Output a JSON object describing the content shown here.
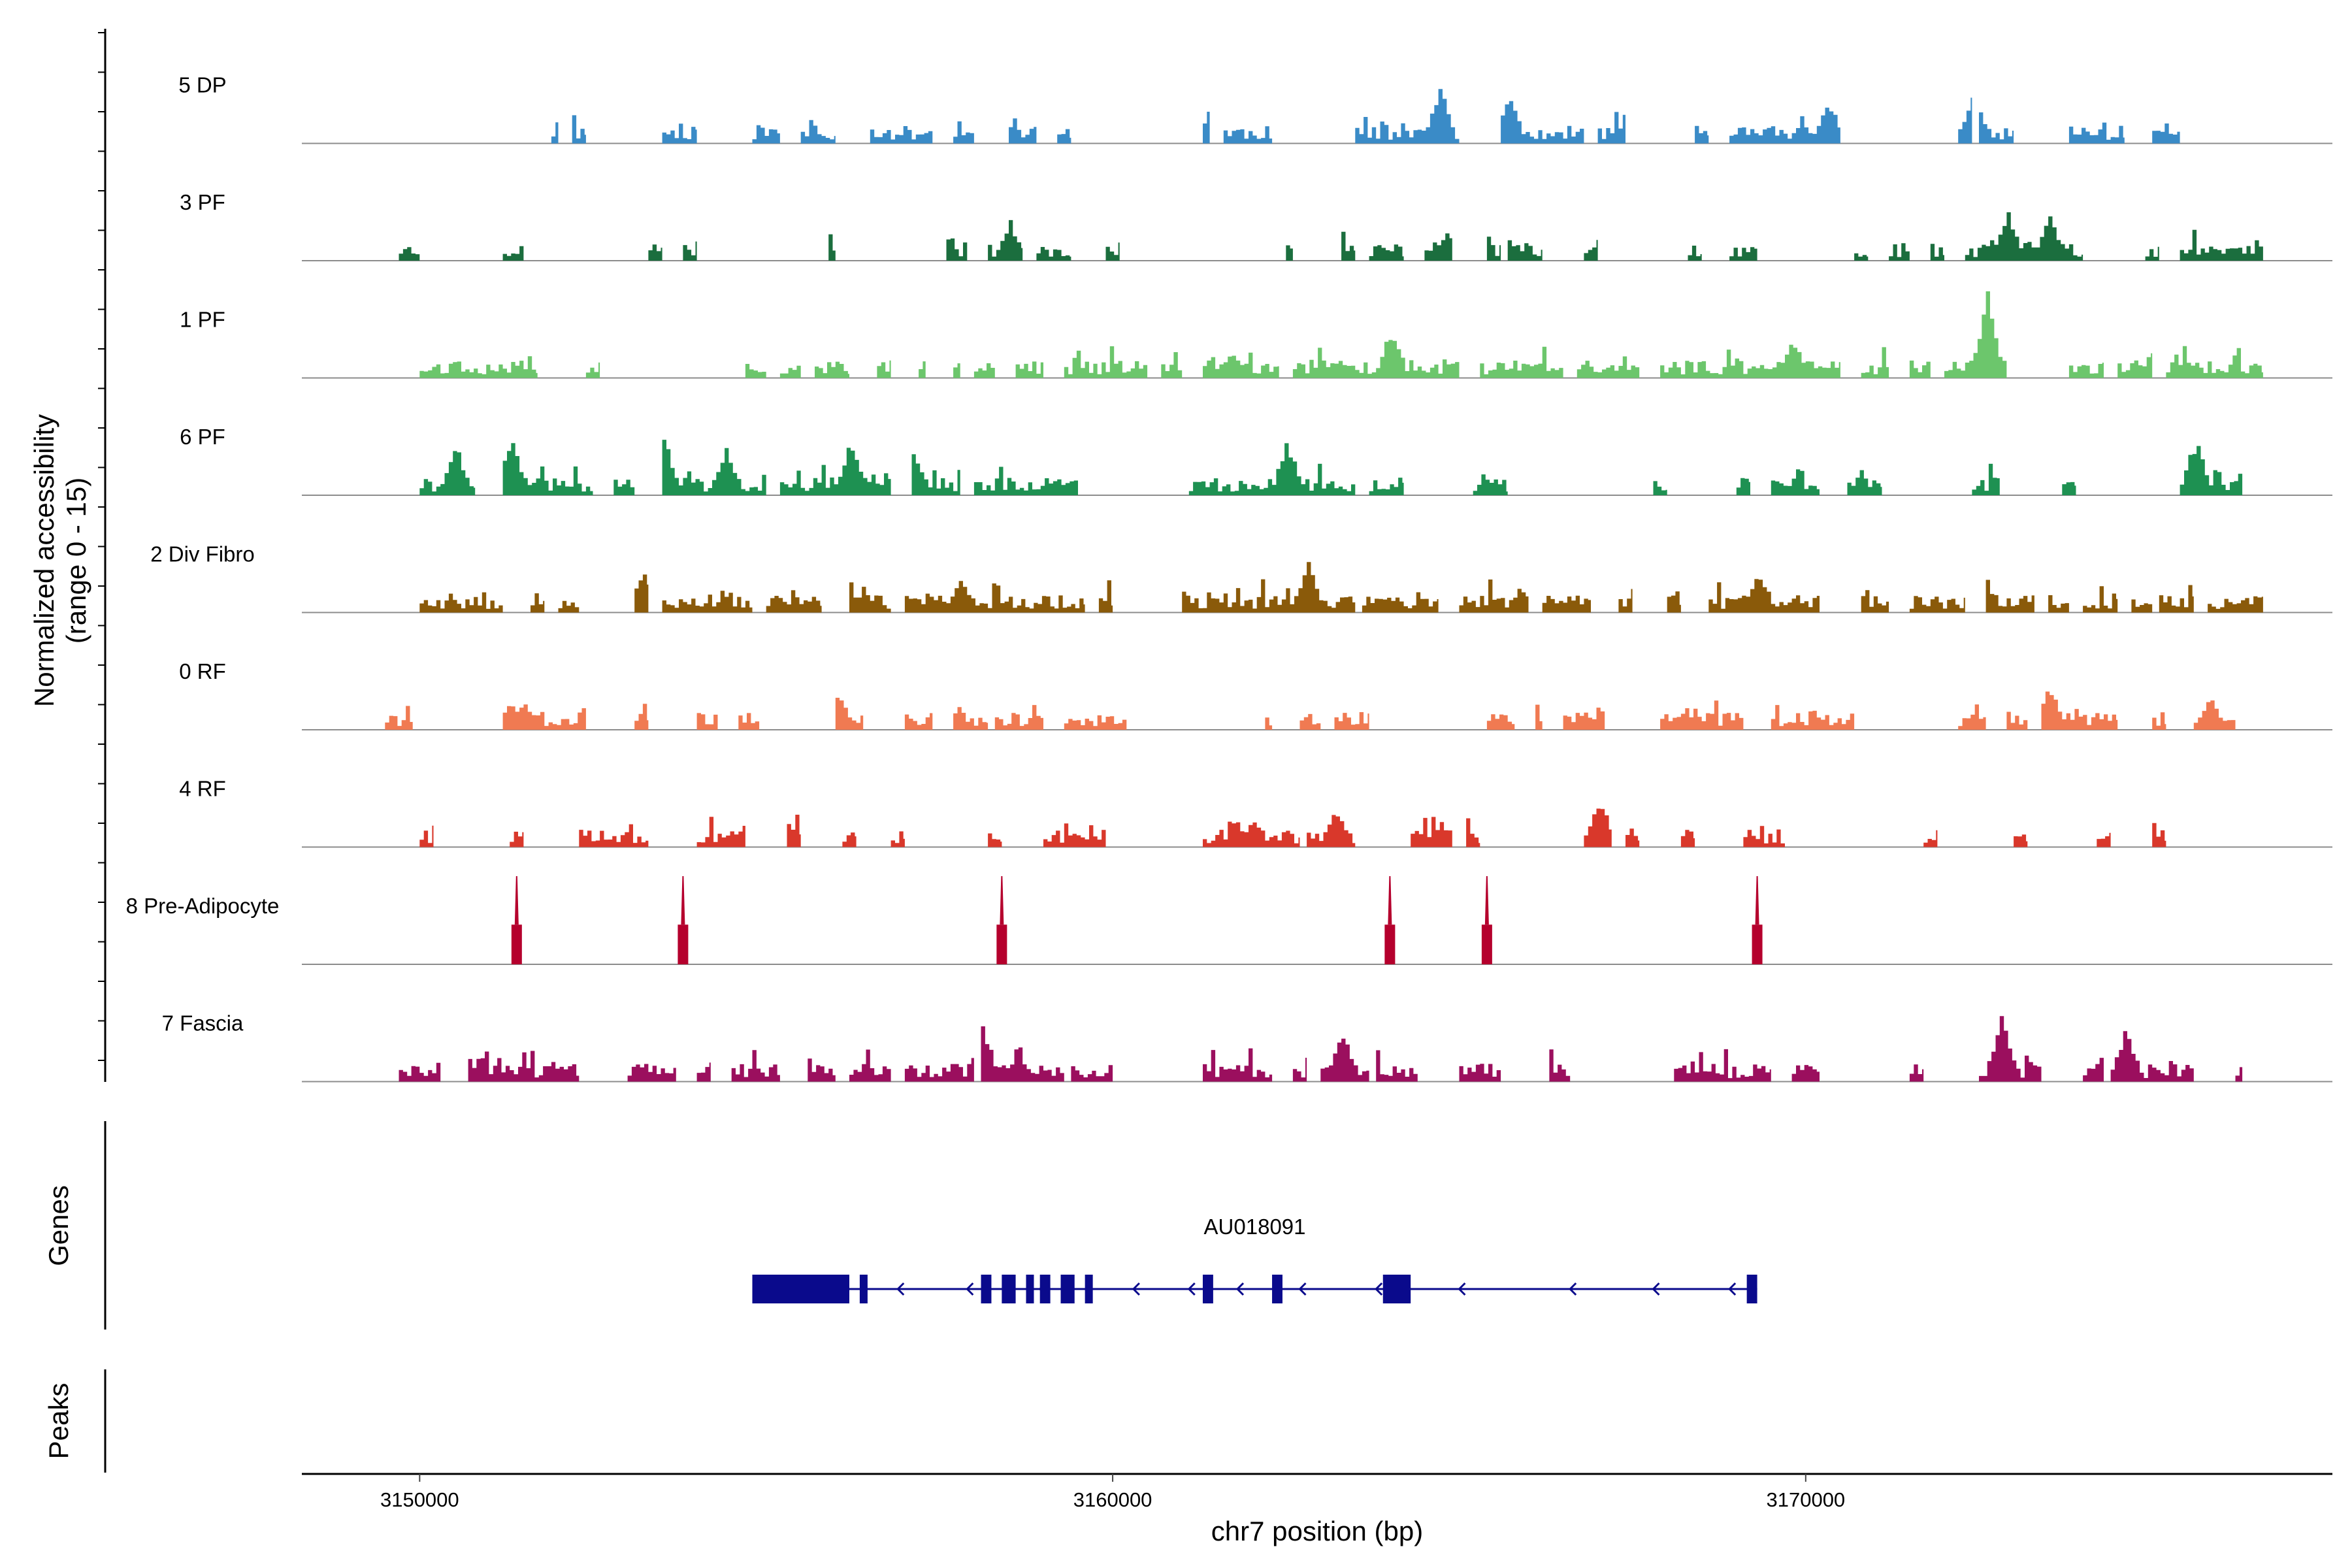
{
  "chart_data": {
    "type": "genome-coverage",
    "y_axis_title": "Normalized accessibility",
    "y_axis_subtitle": "(range 0 - 15)",
    "y_range": [
      0,
      15
    ],
    "x_axis_title": "chr7 position (bp)",
    "x_range": [
      3148300,
      3177600
    ],
    "x_ticks": [
      {
        "value": 3150000,
        "label": "3150000"
      },
      {
        "value": 3160000,
        "label": "3160000"
      },
      {
        "value": 3170000,
        "label": "3170000"
      }
    ],
    "tracks": [
      {
        "name": "5 DP",
        "color": "#3a8bc7",
        "seed": 11,
        "regions": [
          [
            3151900,
            3152000
          ],
          [
            3152200,
            3152400
          ],
          [
            3153500,
            3154000
          ],
          [
            3154800,
            3155200
          ],
          [
            3155500,
            3156000
          ],
          [
            3156500,
            3157400
          ],
          [
            3157700,
            3158000
          ],
          [
            3158500,
            3158900
          ],
          [
            3159200,
            3159400
          ],
          [
            3161300,
            3161400
          ],
          [
            3161600,
            3162300
          ],
          [
            3163500,
            3165000
          ],
          [
            3165600,
            3166800
          ],
          [
            3167000,
            3167400
          ],
          [
            3168400,
            3168600
          ],
          [
            3168900,
            3170500
          ],
          [
            3172200,
            3172400
          ],
          [
            3172500,
            3173000
          ],
          [
            3173800,
            3174600
          ],
          [
            3175000,
            3175400
          ]
        ],
        "peaks": [
          [
            3161420,
            8
          ],
          [
            3164700,
            10
          ],
          [
            3165700,
            9
          ],
          [
            3170300,
            8
          ],
          [
            3172400,
            9
          ]
        ]
      },
      {
        "name": "3 PF",
        "color": "#1b6e3e",
        "seed": 23,
        "regions": [
          [
            3149700,
            3150000
          ],
          [
            3151200,
            3151500
          ],
          [
            3153300,
            3153500
          ],
          [
            3153800,
            3154000
          ],
          [
            3155900,
            3156000
          ],
          [
            3157600,
            3157900
          ],
          [
            3158200,
            3158700
          ],
          [
            3158900,
            3159400
          ],
          [
            3159900,
            3160100
          ],
          [
            3162500,
            3162600
          ],
          [
            3163300,
            3163500
          ],
          [
            3163700,
            3164200
          ],
          [
            3164500,
            3164900
          ],
          [
            3165400,
            3165600
          ],
          [
            3165700,
            3166200
          ],
          [
            3166800,
            3167000
          ],
          [
            3168300,
            3168500
          ],
          [
            3168900,
            3169300
          ],
          [
            3170700,
            3170900
          ],
          [
            3171200,
            3171500
          ],
          [
            3171800,
            3172000
          ],
          [
            3172300,
            3174000
          ],
          [
            3174900,
            3175100
          ],
          [
            3175400,
            3176600
          ]
        ],
        "peaks": [
          [
            3158500,
            7
          ],
          [
            3164800,
            6
          ],
          [
            3172900,
            9
          ],
          [
            3173500,
            8
          ]
        ]
      },
      {
        "name": "1 PF",
        "color": "#6cc66c",
        "seed": 37,
        "regions": [
          [
            3150000,
            3151700
          ],
          [
            3152400,
            3152600
          ],
          [
            3154700,
            3155000
          ],
          [
            3155200,
            3155500
          ],
          [
            3155700,
            3156200
          ],
          [
            3156600,
            3156800
          ],
          [
            3157200,
            3157300
          ],
          [
            3157700,
            3157800
          ],
          [
            3158000,
            3158300
          ],
          [
            3158600,
            3159000
          ],
          [
            3159300,
            3160500
          ],
          [
            3160700,
            3161000
          ],
          [
            3161300,
            3162400
          ],
          [
            3162600,
            3165000
          ],
          [
            3165300,
            3166500
          ],
          [
            3166700,
            3167600
          ],
          [
            3167900,
            3170500
          ],
          [
            3170800,
            3171200
          ],
          [
            3171500,
            3171800
          ],
          [
            3172000,
            3172900
          ],
          [
            3173800,
            3174300
          ],
          [
            3174500,
            3175000
          ],
          [
            3175200,
            3176600
          ]
        ],
        "peaks": [
          [
            3161700,
            5
          ],
          [
            3164000,
            9
          ],
          [
            3169800,
            7
          ],
          [
            3172600,
            15
          ]
        ]
      },
      {
        "name": "6 PF",
        "color": "#1e9152",
        "seed": 41,
        "regions": [
          [
            3150000,
            3150800
          ],
          [
            3151200,
            3152500
          ],
          [
            3152800,
            3153100
          ],
          [
            3153500,
            3155000
          ],
          [
            3155200,
            3156800
          ],
          [
            3157100,
            3157800
          ],
          [
            3158000,
            3159500
          ],
          [
            3161100,
            3163500
          ],
          [
            3163700,
            3164200
          ],
          [
            3165200,
            3165700
          ],
          [
            3167800,
            3168000
          ],
          [
            3169000,
            3169200
          ],
          [
            3169500,
            3170200
          ],
          [
            3170600,
            3171100
          ],
          [
            3172400,
            3172800
          ],
          [
            3173700,
            3173900
          ],
          [
            3175400,
            3176300
          ]
        ],
        "peaks": [
          [
            3150500,
            9
          ],
          [
            3151300,
            10
          ],
          [
            3153500,
            11
          ],
          [
            3154400,
            9
          ],
          [
            3156200,
            10
          ],
          [
            3157100,
            9
          ],
          [
            3162500,
            10
          ],
          [
            3164900,
            9
          ],
          [
            3175600,
            10
          ]
        ]
      },
      {
        "name": "2 Div Fibro",
        "color": "#8a5a0a",
        "seed": 53,
        "regions": [
          [
            3150000,
            3151200
          ],
          [
            3151600,
            3151800
          ],
          [
            3152000,
            3152300
          ],
          [
            3153100,
            3153300
          ],
          [
            3153500,
            3154800
          ],
          [
            3155000,
            3155800
          ],
          [
            3156200,
            3156800
          ],
          [
            3157000,
            3159600
          ],
          [
            3159800,
            3160000
          ],
          [
            3161000,
            3163500
          ],
          [
            3163600,
            3164700
          ],
          [
            3165000,
            3166000
          ],
          [
            3166200,
            3166900
          ],
          [
            3167300,
            3167500
          ],
          [
            3168000,
            3168200
          ],
          [
            3168600,
            3170200
          ],
          [
            3170800,
            3171200
          ],
          [
            3171500,
            3172300
          ],
          [
            3172600,
            3173300
          ],
          [
            3173500,
            3173800
          ],
          [
            3174000,
            3174500
          ],
          [
            3174700,
            3175000
          ],
          [
            3175100,
            3175600
          ],
          [
            3175800,
            3176600
          ]
        ],
        "peaks": [
          [
            3153200,
            7
          ],
          [
            3157800,
            6
          ],
          [
            3162800,
            9
          ],
          [
            3169300,
            8
          ],
          [
            3172500,
            10
          ]
        ]
      },
      {
        "name": "0 RF",
        "color": "#f07a52",
        "seed": 67,
        "regions": [
          [
            3149500,
            3149900
          ],
          [
            3151200,
            3152400
          ],
          [
            3153100,
            3153300
          ],
          [
            3154000,
            3154300
          ],
          [
            3154600,
            3154900
          ],
          [
            3156000,
            3156400
          ],
          [
            3157000,
            3157400
          ],
          [
            3157700,
            3158200
          ],
          [
            3158300,
            3159000
          ],
          [
            3159300,
            3160200
          ],
          [
            3162200,
            3162300
          ],
          [
            3162700,
            3163000
          ],
          [
            3163200,
            3163700
          ],
          [
            3165400,
            3165800
          ],
          [
            3166100,
            3166200
          ],
          [
            3166500,
            3167100
          ],
          [
            3167900,
            3169100
          ],
          [
            3169500,
            3170700
          ],
          [
            3172200,
            3172600
          ],
          [
            3172900,
            3173200
          ],
          [
            3173400,
            3174500
          ],
          [
            3175000,
            3175200
          ],
          [
            3175600,
            3176200
          ]
        ],
        "peaks": [
          [
            3151500,
            5
          ],
          [
            3156000,
            7
          ],
          [
            3157600,
            6
          ],
          [
            3169300,
            4
          ],
          [
            3173500,
            8
          ],
          [
            3175800,
            6
          ]
        ]
      },
      {
        "name": "4 RF",
        "color": "#d9382b",
        "seed": 79,
        "regions": [
          [
            3150000,
            3150200
          ],
          [
            3151300,
            3151500
          ],
          [
            3152300,
            3153300
          ],
          [
            3154000,
            3154700
          ],
          [
            3155300,
            3155500
          ],
          [
            3156100,
            3156300
          ],
          [
            3156800,
            3157000
          ],
          [
            3158200,
            3158400
          ],
          [
            3159000,
            3159900
          ],
          [
            3161300,
            3162700
          ],
          [
            3162800,
            3163500
          ],
          [
            3164300,
            3164900
          ],
          [
            3165100,
            3165300
          ],
          [
            3166800,
            3167200
          ],
          [
            3167400,
            3167600
          ],
          [
            3168200,
            3168400
          ],
          [
            3169100,
            3169700
          ],
          [
            3171700,
            3171900
          ],
          [
            3173000,
            3173200
          ],
          [
            3174200,
            3174400
          ],
          [
            3175000,
            3175200
          ]
        ],
        "peaks": [
          [
            3162000,
            5
          ],
          [
            3163200,
            7
          ],
          [
            3167000,
            9
          ]
        ]
      },
      {
        "name": "8 Pre-Adipocyte",
        "color": "#b5002d",
        "mode": "spikes",
        "spikes": [
          [
            3151400,
            15
          ],
          [
            3153800,
            15
          ],
          [
            3158400,
            15
          ],
          [
            3164000,
            15
          ],
          [
            3165400,
            15
          ],
          [
            3169300,
            15
          ]
        ]
      },
      {
        "name": "7 Fascia",
        "color": "#9b0f5e",
        "seed": 97,
        "regions": [
          [
            3149700,
            3150300
          ],
          [
            3150700,
            3152300
          ],
          [
            3153000,
            3153700
          ],
          [
            3154000,
            3154200
          ],
          [
            3154500,
            3155200
          ],
          [
            3155600,
            3156000
          ],
          [
            3156200,
            3156800
          ],
          [
            3157000,
            3158000
          ],
          [
            3158100,
            3159300
          ],
          [
            3159400,
            3160000
          ],
          [
            3161300,
            3162300
          ],
          [
            3162600,
            3162800
          ],
          [
            3163000,
            3163700
          ],
          [
            3163800,
            3164400
          ],
          [
            3165000,
            3165600
          ],
          [
            3166300,
            3166600
          ],
          [
            3168100,
            3169500
          ],
          [
            3169800,
            3170200
          ],
          [
            3171500,
            3171700
          ],
          [
            3172500,
            3173400
          ],
          [
            3174000,
            3174300
          ],
          [
            3174400,
            3175600
          ],
          [
            3176200,
            3176300
          ]
        ],
        "peaks": [
          [
            3150600,
            8
          ],
          [
            3158100,
            11
          ],
          [
            3163300,
            9
          ],
          [
            3172800,
            12
          ],
          [
            3174600,
            10
          ]
        ]
      }
    ],
    "genes": {
      "title": "Genes",
      "name": "AU018091",
      "strand": "-",
      "start": 3154800,
      "end": 3169300,
      "color": "#0a0a8c",
      "exons": [
        [
          3154800,
          3156200
        ],
        [
          3156350,
          3156450
        ],
        [
          3158100,
          3158250
        ],
        [
          3158400,
          3158600
        ],
        [
          3158750,
          3158850
        ],
        [
          3158950,
          3159100
        ],
        [
          3159250,
          3159450
        ],
        [
          3159600,
          3159700
        ],
        [
          3161300,
          3161450
        ],
        [
          3162300,
          3162450
        ],
        [
          3163900,
          3164300
        ],
        [
          3169150,
          3169300
        ]
      ],
      "arrows": [
        3156900,
        3157900,
        3158950,
        3160300,
        3161100,
        3161800,
        3162700,
        3163800,
        3165000,
        3166600,
        3167800,
        3168900
      ]
    },
    "peaks_track": {
      "title": "Peaks",
      "items": []
    }
  }
}
